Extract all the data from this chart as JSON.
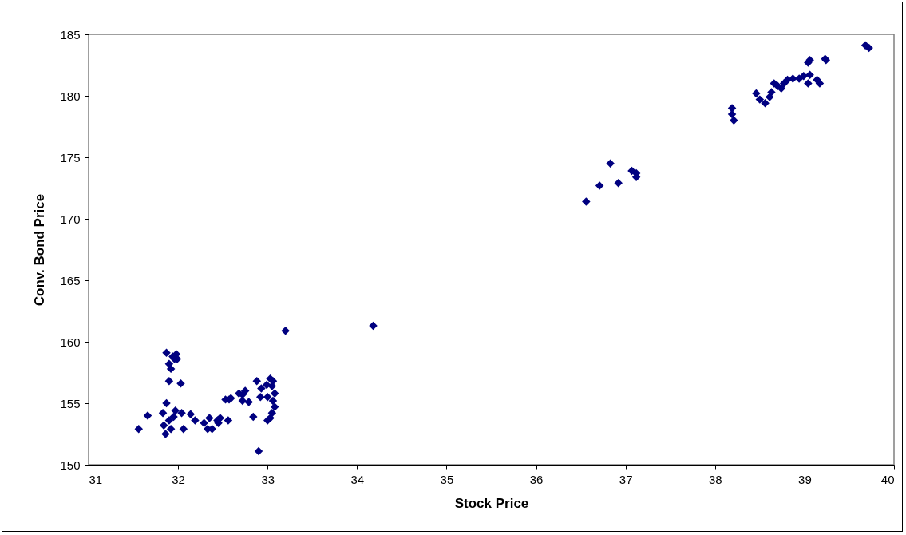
{
  "chart_data": {
    "type": "scatter",
    "xlabel": "Stock Price",
    "ylabel": "Conv. Bond Price",
    "marker": "diamond",
    "grid": false,
    "xlim": [
      31,
      40
    ],
    "xticks": [
      31,
      32,
      33,
      34,
      35,
      36,
      37,
      38,
      39,
      40
    ],
    "ylim": [
      150,
      185
    ],
    "yticks": [
      150,
      155,
      160,
      165,
      170,
      175,
      180,
      185
    ],
    "series": [
      {
        "color": "#000080",
        "x": [
          31.56,
          31.66,
          31.84,
          31.83,
          31.86,
          31.87,
          31.9,
          31.87,
          31.9,
          31.92,
          31.9,
          31.94,
          31.96,
          31.98,
          31.99,
          31.92,
          31.95,
          31.97,
          32.03,
          32.04,
          32.06,
          32.14,
          32.19,
          32.29,
          32.33,
          32.38,
          32.35,
          32.44,
          32.47,
          32.45,
          32.53,
          32.57,
          32.56,
          32.59,
          32.68,
          32.72,
          32.72,
          32.75,
          32.79,
          32.84,
          32.88,
          32.9,
          32.93,
          32.92,
          32.99,
          33.03,
          33.0,
          33.06,
          33.08,
          33.06,
          33.05,
          33.03,
          33.05,
          33.08,
          33.0,
          33.2,
          34.18,
          36.56,
          36.71,
          36.83,
          36.92,
          37.07,
          37.12,
          37.12,
          38.19,
          38.19,
          38.21,
          38.46,
          38.5,
          38.56,
          38.61,
          38.63,
          38.66,
          38.7,
          38.74,
          38.77,
          38.81,
          38.87,
          38.94,
          38.99,
          39.06,
          39.04,
          39.06,
          39.04,
          39.14,
          39.17,
          39.23,
          39.24,
          39.68,
          39.72
        ],
        "values": [
          152.9,
          154.0,
          153.2,
          154.2,
          152.5,
          155.0,
          153.6,
          159.1,
          158.2,
          157.8,
          156.8,
          158.8,
          158.6,
          159.0,
          158.6,
          152.9,
          153.9,
          154.4,
          156.6,
          154.2,
          152.9,
          154.1,
          153.6,
          153.4,
          152.9,
          152.9,
          153.8,
          153.6,
          153.8,
          153.4,
          155.3,
          155.3,
          153.6,
          155.4,
          155.8,
          155.7,
          155.2,
          156.0,
          155.1,
          153.9,
          156.8,
          151.1,
          156.2,
          155.5,
          156.5,
          157.0,
          155.5,
          155.2,
          155.8,
          156.8,
          156.4,
          153.8,
          154.2,
          154.7,
          153.6,
          160.9,
          161.3,
          171.4,
          172.7,
          174.5,
          172.9,
          173.9,
          173.7,
          173.4,
          179.0,
          178.5,
          178.0,
          180.2,
          179.7,
          179.4,
          179.9,
          180.3,
          181.0,
          180.8,
          180.6,
          181.0,
          181.3,
          181.4,
          181.4,
          181.6,
          181.7,
          181.0,
          182.9,
          182.7,
          181.3,
          181.0,
          183.0,
          182.9,
          184.1,
          183.9
        ]
      }
    ]
  }
}
